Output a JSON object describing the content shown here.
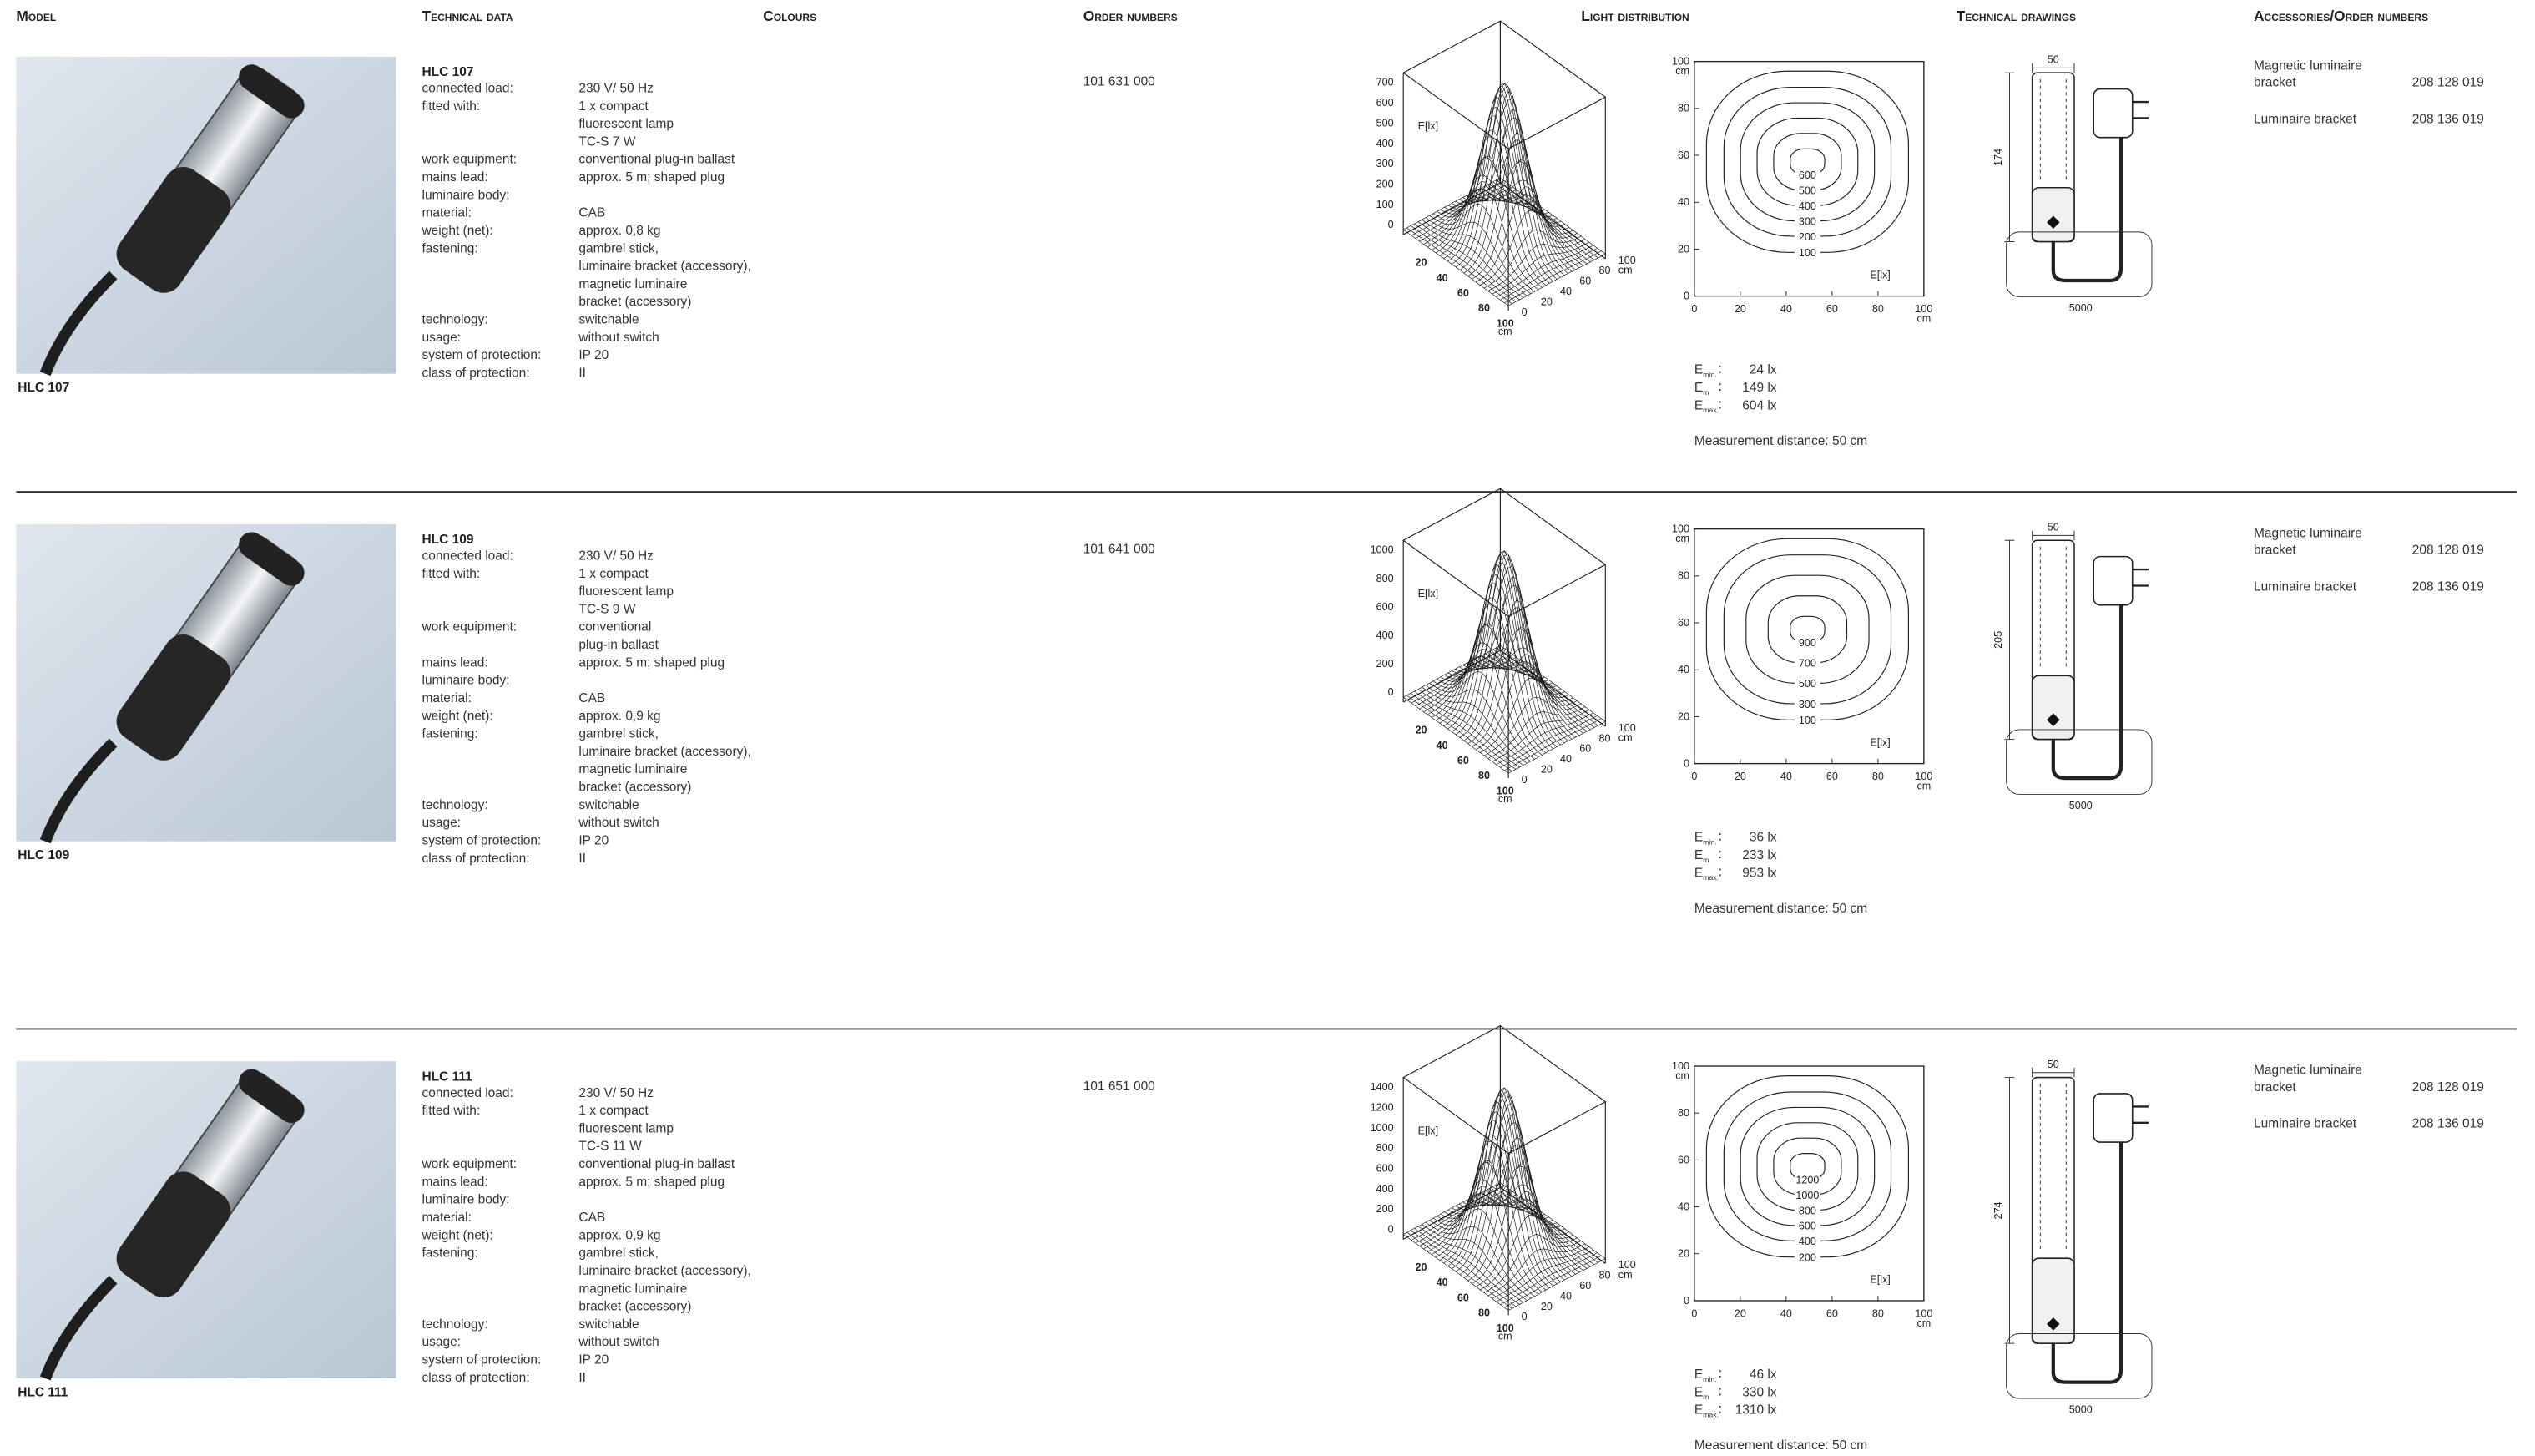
{
  "headers": [
    "Model",
    "Technical data",
    "Colours",
    "Order numbers",
    "Light distribution",
    "Technical drawings",
    "Accessories/Order numbers"
  ],
  "products": [
    {
      "caption": "HLC 107",
      "name": "HLC 107",
      "specs": [
        {
          "label": "connected load:",
          "value": [
            "230 V/ 50 Hz"
          ]
        },
        {
          "label": "fitted with:",
          "value": [
            "1 x compact",
            "fluorescent lamp",
            "TC-S 7 W"
          ]
        },
        {
          "label": "work equipment:",
          "value": [
            "conventional plug-in ballast"
          ]
        },
        {
          "label": "mains lead:",
          "value": [
            "approx. 5 m; shaped plug"
          ]
        },
        {
          "label": "luminaire body:",
          "value": []
        },
        {
          "label": "material:",
          "value": [
            "CAB"
          ]
        },
        {
          "label": "weight (net):",
          "value": [
            "approx. 0,8 kg"
          ]
        },
        {
          "label": "fastening:",
          "value": [
            "gambrel stick,",
            "luminaire bracket (accessory),",
            "magnetic luminaire",
            "bracket (accessory)"
          ]
        },
        {
          "label": "technology:",
          "value": [
            "switchable"
          ]
        },
        {
          "label": "usage:",
          "value": [
            "without switch"
          ]
        },
        {
          "label": "system of protection:",
          "value": [
            "IP 20"
          ]
        },
        {
          "label": "class of protection:",
          "value": [
            "II"
          ]
        }
      ],
      "order_number": "101 631 000",
      "surface_plot": {
        "label": "E[lx]",
        "unit": "cm",
        "zticks": [
          0,
          100,
          200,
          300,
          400,
          500,
          600,
          700
        ],
        "xticks": [
          20,
          40,
          60,
          80,
          100
        ],
        "yticks": [
          0,
          20,
          40,
          60,
          80,
          100
        ]
      },
      "contour_plot": {
        "label": "E[lx]",
        "unit": "cm",
        "xticks": [
          0,
          20,
          40,
          60,
          80,
          100
        ],
        "yticks": [
          0,
          20,
          40,
          60,
          80,
          100
        ],
        "levels": [
          600,
          500,
          400,
          300,
          200,
          100
        ]
      },
      "illuminance": [
        {
          "symbol": "E",
          "sub": "min.",
          "value": "24 lx"
        },
        {
          "symbol": "E",
          "sub": "m",
          "value": "149 lx"
        },
        {
          "symbol": "E",
          "sub": "max.",
          "value": "604 lx"
        }
      ],
      "measurement": "Measurement distance: 50 cm",
      "drawing": {
        "width": "50",
        "height": "174",
        "cable": "5000"
      },
      "accessories": [
        {
          "name": [
            "Magnetic luminaire",
            "bracket"
          ],
          "number": "208 128 019"
        },
        {
          "name": [
            "Luminaire bracket"
          ],
          "number": "208 136 019"
        }
      ]
    },
    {
      "caption": "HLC 109",
      "name": "HLC 109",
      "specs": [
        {
          "label": "connected load:",
          "value": [
            "230 V/ 50 Hz"
          ]
        },
        {
          "label": "fitted with:",
          "value": [
            "1 x compact",
            "fluorescent lamp",
            "TC-S 9 W"
          ]
        },
        {
          "label": "work equipment:",
          "value": [
            "conventional",
            "plug-in ballast"
          ]
        },
        {
          "label": "mains lead:",
          "value": [
            "approx. 5 m; shaped plug"
          ]
        },
        {
          "label": "luminaire body:",
          "value": []
        },
        {
          "label": "material:",
          "value": [
            "CAB"
          ]
        },
        {
          "label": "weight (net):",
          "value": [
            "approx. 0,9 kg"
          ]
        },
        {
          "label": "fastening:",
          "value": [
            "gambrel stick,",
            "luminaire bracket (accessory),",
            "magnetic luminaire",
            "bracket (accessory)"
          ]
        },
        {
          "label": "technology:",
          "value": [
            "switchable"
          ]
        },
        {
          "label": "usage:",
          "value": [
            "without switch"
          ]
        },
        {
          "label": "system of protection:",
          "value": [
            "IP 20"
          ]
        },
        {
          "label": "class of protection:",
          "value": [
            "II"
          ]
        }
      ],
      "order_number": "101 641 000",
      "surface_plot": {
        "label": "E[lx]",
        "unit": "cm",
        "zticks": [
          0,
          200,
          400,
          600,
          800,
          1000
        ],
        "xticks": [
          20,
          40,
          60,
          80,
          100
        ],
        "yticks": [
          0,
          20,
          40,
          60,
          80,
          100
        ]
      },
      "contour_plot": {
        "label": "E[lx]",
        "unit": "cm",
        "xticks": [
          0,
          20,
          40,
          60,
          80,
          100
        ],
        "yticks": [
          0,
          20,
          40,
          60,
          80,
          100
        ],
        "levels": [
          900,
          700,
          500,
          300,
          100
        ]
      },
      "illuminance": [
        {
          "symbol": "E",
          "sub": "min.",
          "value": "36 lx"
        },
        {
          "symbol": "E",
          "sub": "m",
          "value": "233 lx"
        },
        {
          "symbol": "E",
          "sub": "max.",
          "value": "953 lx"
        }
      ],
      "measurement": "Measurement distance: 50 cm",
      "drawing": {
        "width": "50",
        "height": "205",
        "cable": "5000"
      },
      "accessories": [
        {
          "name": [
            "Magnetic luminaire",
            "bracket"
          ],
          "number": "208 128 019"
        },
        {
          "name": [
            "Luminaire bracket"
          ],
          "number": "208 136 019"
        }
      ]
    },
    {
      "caption": "HLC 111",
      "name": "HLC 111",
      "specs": [
        {
          "label": "connected load:",
          "value": [
            "230 V/ 50 Hz"
          ]
        },
        {
          "label": "fitted with:",
          "value": [
            "1 x compact",
            "fluorescent lamp",
            "TC-S 11 W"
          ]
        },
        {
          "label": "work equipment:",
          "value": [
            "conventional plug-in ballast"
          ]
        },
        {
          "label": "mains lead:",
          "value": [
            "approx. 5 m; shaped plug"
          ]
        },
        {
          "label": "luminaire body:",
          "value": []
        },
        {
          "label": "material:",
          "value": [
            "CAB"
          ]
        },
        {
          "label": "weight (net):",
          "value": [
            "approx. 0,9 kg"
          ]
        },
        {
          "label": "fastening:",
          "value": [
            "gambrel stick,",
            "luminaire bracket (accessory),",
            "magnetic luminaire",
            "bracket (accessory)"
          ]
        },
        {
          "label": "technology:",
          "value": [
            "switchable"
          ]
        },
        {
          "label": "usage:",
          "value": [
            "without switch"
          ]
        },
        {
          "label": "system of protection:",
          "value": [
            "IP 20"
          ]
        },
        {
          "label": "class of protection:",
          "value": [
            "II"
          ]
        }
      ],
      "order_number": "101 651 000",
      "surface_plot": {
        "label": "E[lx]",
        "unit": "cm",
        "zticks": [
          0,
          200,
          400,
          600,
          800,
          1000,
          1200,
          1400
        ],
        "xticks": [
          20,
          40,
          60,
          80,
          100
        ],
        "yticks": [
          0,
          20,
          40,
          60,
          80,
          100
        ]
      },
      "contour_plot": {
        "label": "E[lx]",
        "unit": "cm",
        "xticks": [
          0,
          20,
          40,
          60,
          80,
          100
        ],
        "yticks": [
          0,
          20,
          40,
          60,
          80,
          100
        ],
        "levels": [
          1200,
          1000,
          800,
          600,
          400,
          200
        ]
      },
      "illuminance": [
        {
          "symbol": "E",
          "sub": "min.",
          "value": "46 lx"
        },
        {
          "symbol": "E",
          "sub": "m",
          "value": "330 lx"
        },
        {
          "symbol": "E",
          "sub": "max.",
          "value": "1310 lx"
        }
      ],
      "measurement": "Measurement distance: 50 cm",
      "drawing": {
        "width": "50",
        "height": "274",
        "cable": "5000"
      },
      "accessories": [
        {
          "name": [
            "Magnetic luminaire",
            "bracket"
          ],
          "number": "208 128 019"
        },
        {
          "name": [
            "Luminaire bracket"
          ],
          "number": "208 136 019"
        }
      ]
    }
  ]
}
